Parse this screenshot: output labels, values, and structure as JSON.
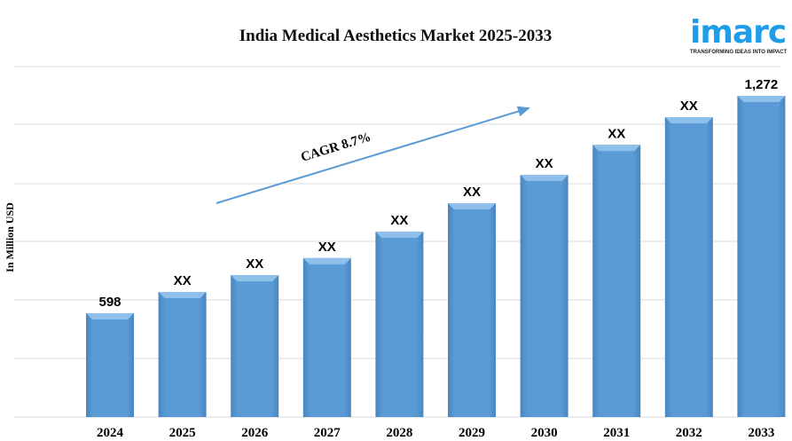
{
  "chart_data": {
    "type": "bar",
    "title": "India Medical Aesthetics Market 2025-2033",
    "ylabel": "In Million USD",
    "xlabel": "",
    "categories": [
      "2024",
      "2025",
      "2026",
      "2027",
      "2028",
      "2029",
      "2030",
      "2031",
      "2032",
      "2033"
    ],
    "values": [
      598,
      664,
      716,
      769,
      851,
      939,
      1027,
      1120,
      1206,
      1272
    ],
    "data_labels": [
      "598",
      "XX",
      "XX",
      "XX",
      "XX",
      "XX",
      "XX",
      "XX",
      "XX",
      "1,272"
    ],
    "annotation": "CAGR 8.7%",
    "grid": true,
    "bar_color": "#5b9bd5"
  },
  "logo": {
    "word": "imarc",
    "tagline": "TRANSFORMING IDEAS INTO IMPACT",
    "color": "#1e9ee8"
  }
}
